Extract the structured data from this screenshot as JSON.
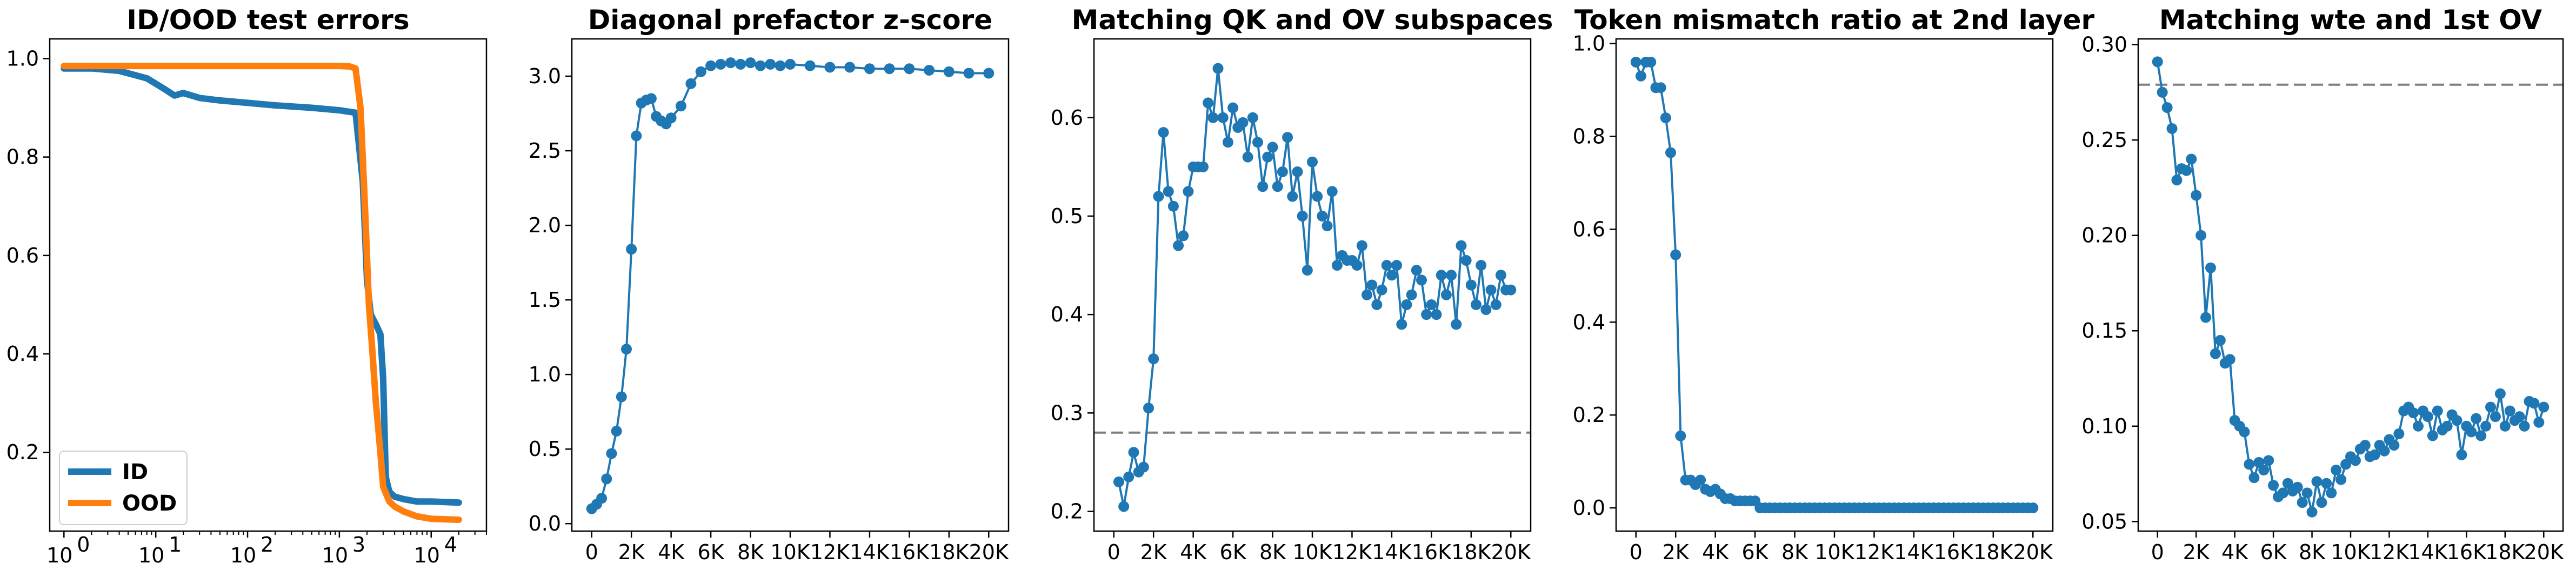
{
  "chart_data": [
    {
      "type": "line",
      "title": "ID/OOD test errors",
      "xlabel": "",
      "ylabel": "",
      "xscale": "log",
      "xlim": [
        0.7,
        40000
      ],
      "ylim": [
        0.04,
        1.04
      ],
      "x_ticks": [
        1,
        10,
        100,
        1000,
        10000
      ],
      "x_tick_labels": [
        "10",
        "10",
        "10",
        "10",
        "10"
      ],
      "x_tick_exponents": [
        "0",
        "1",
        "2",
        "3",
        "4"
      ],
      "y_ticks": [
        0.2,
        0.4,
        0.6,
        0.8,
        1.0
      ],
      "y_tick_labels": [
        "0.2",
        "0.4",
        "0.6",
        "0.8",
        "1.0"
      ],
      "legend_position": "lower-left",
      "grid": false,
      "series": [
        {
          "name": "ID",
          "color": "#1f77b4",
          "x": [
            1,
            2,
            4,
            8,
            12,
            16,
            20,
            30,
            50,
            100,
            200,
            500,
            1000,
            1500,
            1800,
            2000,
            2200,
            2500,
            2800,
            3000,
            3200,
            3500,
            4000,
            5000,
            7000,
            10000,
            20000
          ],
          "y": [
            0.98,
            0.98,
            0.975,
            0.96,
            0.94,
            0.925,
            0.93,
            0.92,
            0.915,
            0.91,
            0.905,
            0.9,
            0.895,
            0.89,
            0.75,
            0.55,
            0.48,
            0.46,
            0.44,
            0.35,
            0.15,
            0.12,
            0.11,
            0.105,
            0.1,
            0.1,
            0.098
          ]
        },
        {
          "name": "OOD",
          "color": "#ff7f0e",
          "x": [
            1,
            10,
            100,
            1000,
            1300,
            1500,
            1700,
            1900,
            2100,
            2300,
            2500,
            2800,
            3000,
            3500,
            4000,
            5000,
            7000,
            10000,
            20000
          ],
          "y": [
            0.985,
            0.985,
            0.985,
            0.985,
            0.984,
            0.98,
            0.9,
            0.7,
            0.5,
            0.4,
            0.3,
            0.2,
            0.13,
            0.1,
            0.09,
            0.08,
            0.07,
            0.065,
            0.063
          ]
        }
      ]
    },
    {
      "type": "line",
      "title": "Diagonal prefactor z-score",
      "xlabel": "",
      "ylabel": "",
      "xlim": [
        -1000,
        21000
      ],
      "ylim": [
        -0.05,
        3.25
      ],
      "x_ticks": [
        0,
        2000,
        4000,
        6000,
        8000,
        10000,
        12000,
        14000,
        16000,
        18000,
        20000
      ],
      "x_tick_labels": [
        "0",
        "2K",
        "4K",
        "6K",
        "8K",
        "10K",
        "12K",
        "14K",
        "16K",
        "18K",
        "20K"
      ],
      "y_ticks": [
        0,
        0.5,
        1.0,
        1.5,
        2.0,
        2.5,
        3.0
      ],
      "y_tick_labels": [
        "0.0",
        "0.5",
        "1.0",
        "1.5",
        "2.0",
        "2.5",
        "3.0"
      ],
      "grid": false,
      "series": [
        {
          "color": "#1f77b4",
          "markers": true,
          "x": [
            0,
            250,
            500,
            750,
            1000,
            1250,
            1500,
            1750,
            2000,
            2250,
            2500,
            2750,
            3000,
            3250,
            3500,
            3750,
            4000,
            4500,
            5000,
            5500,
            6000,
            6500,
            7000,
            7500,
            8000,
            8500,
            9000,
            9500,
            10000,
            11000,
            12000,
            13000,
            14000,
            15000,
            16000,
            17000,
            18000,
            19000,
            20000
          ],
          "y": [
            0.1,
            0.13,
            0.17,
            0.3,
            0.47,
            0.62,
            0.85,
            1.17,
            1.84,
            2.6,
            2.82,
            2.84,
            2.85,
            2.73,
            2.7,
            2.68,
            2.72,
            2.8,
            2.95,
            3.03,
            3.07,
            3.08,
            3.09,
            3.08,
            3.09,
            3.07,
            3.08,
            3.07,
            3.08,
            3.07,
            3.06,
            3.06,
            3.05,
            3.05,
            3.05,
            3.04,
            3.03,
            3.02,
            3.02
          ]
        }
      ]
    },
    {
      "type": "line",
      "title": "Matching QK and OV subspaces",
      "xlabel": "",
      "ylabel": "",
      "xlim": [
        -1000,
        21000
      ],
      "ylim": [
        0.18,
        0.68
      ],
      "x_ticks": [
        0,
        2000,
        4000,
        6000,
        8000,
        10000,
        12000,
        14000,
        16000,
        18000,
        20000
      ],
      "x_tick_labels": [
        "0",
        "2K",
        "4K",
        "6K",
        "8K",
        "10K",
        "12K",
        "14K",
        "16K",
        "18K",
        "20K"
      ],
      "y_ticks": [
        0.2,
        0.3,
        0.4,
        0.5,
        0.6
      ],
      "y_tick_labels": [
        "0.2",
        "0.3",
        "0.4",
        "0.5",
        "0.6"
      ],
      "reference_line_y": 0.28,
      "grid": false,
      "series": [
        {
          "color": "#1f77b4",
          "markers": true,
          "x": [
            250,
            500,
            750,
            1000,
            1250,
            1500,
            1750,
            2000,
            2250,
            2500,
            2750,
            3000,
            3250,
            3500,
            3750,
            4000,
            4250,
            4500,
            4750,
            5000,
            5250,
            5500,
            5750,
            6000,
            6250,
            6500,
            6750,
            7000,
            7250,
            7500,
            7750,
            8000,
            8250,
            8500,
            8750,
            9000,
            9250,
            9500,
            9750,
            10000,
            10250,
            10500,
            10750,
            11000,
            11250,
            11500,
            11750,
            12000,
            12250,
            12500,
            12750,
            13000,
            13250,
            13500,
            13750,
            14000,
            14250,
            14500,
            14750,
            15000,
            15250,
            15500,
            15750,
            16000,
            16250,
            16500,
            16750,
            17000,
            17250,
            17500,
            17750,
            18000,
            18250,
            18500,
            18750,
            19000,
            19250,
            19500,
            19750,
            20000
          ],
          "y": [
            0.23,
            0.205,
            0.235,
            0.26,
            0.24,
            0.245,
            0.305,
            0.355,
            0.52,
            0.585,
            0.525,
            0.51,
            0.47,
            0.48,
            0.525,
            0.55,
            0.55,
            0.55,
            0.615,
            0.6,
            0.65,
            0.6,
            0.575,
            0.61,
            0.59,
            0.595,
            0.56,
            0.6,
            0.575,
            0.53,
            0.56,
            0.57,
            0.53,
            0.545,
            0.58,
            0.52,
            0.545,
            0.5,
            0.445,
            0.555,
            0.52,
            0.5,
            0.49,
            0.525,
            0.45,
            0.46,
            0.455,
            0.455,
            0.45,
            0.47,
            0.42,
            0.43,
            0.41,
            0.425,
            0.45,
            0.44,
            0.45,
            0.39,
            0.41,
            0.42,
            0.445,
            0.435,
            0.4,
            0.41,
            0.4,
            0.44,
            0.42,
            0.44,
            0.39,
            0.47,
            0.455,
            0.43,
            0.41,
            0.45,
            0.405,
            0.425,
            0.41,
            0.44,
            0.425,
            0.425
          ]
        }
      ]
    },
    {
      "type": "line",
      "title": "Token mismatch ratio at 2nd layer",
      "xlabel": "",
      "ylabel": "",
      "xlim": [
        -1000,
        21000
      ],
      "ylim": [
        -0.05,
        1.01
      ],
      "x_ticks": [
        0,
        2000,
        4000,
        6000,
        8000,
        10000,
        12000,
        14000,
        16000,
        18000,
        20000
      ],
      "x_tick_labels": [
        "0",
        "2K",
        "4K",
        "6K",
        "8K",
        "10K",
        "12K",
        "14K",
        "16K",
        "18K",
        "20K"
      ],
      "y_ticks": [
        0,
        0.2,
        0.4,
        0.6,
        0.8,
        1.0
      ],
      "y_tick_labels": [
        "0.0",
        "0.2",
        "0.4",
        "0.6",
        "0.8",
        "1.0"
      ],
      "grid": false,
      "series": [
        {
          "color": "#1f77b4",
          "markers": true,
          "x": [
            0,
            250,
            500,
            750,
            1000,
            1250,
            1500,
            1750,
            2000,
            2250,
            2500,
            2750,
            3000,
            3250,
            3500,
            3750,
            4000,
            4250,
            4500,
            4750,
            5000,
            5250,
            5500,
            5750,
            6000,
            6250,
            6500,
            6750,
            7000,
            7250,
            7500,
            7750,
            8000,
            8250,
            8500,
            8750,
            9000,
            9250,
            9500,
            9750,
            10000,
            10250,
            10500,
            10750,
            11000,
            11250,
            11500,
            11750,
            12000,
            12250,
            12500,
            12750,
            13000,
            13250,
            13500,
            13750,
            14000,
            14250,
            14500,
            14750,
            15000,
            15250,
            15500,
            15750,
            16000,
            16250,
            16500,
            16750,
            17000,
            17250,
            17500,
            17750,
            18000,
            18250,
            18500,
            18750,
            19000,
            19250,
            19500,
            19750,
            20000
          ],
          "y": [
            0.96,
            0.93,
            0.96,
            0.96,
            0.905,
            0.905,
            0.84,
            0.765,
            0.545,
            0.155,
            0.06,
            0.06,
            0.05,
            0.06,
            0.04,
            0.035,
            0.04,
            0.03,
            0.02,
            0.02,
            0.015,
            0.015,
            0.015,
            0.015,
            0.015,
            0,
            0,
            0,
            0,
            0,
            0,
            0,
            0,
            0,
            0,
            0,
            0,
            0,
            0,
            0,
            0,
            0,
            0,
            0,
            0,
            0,
            0,
            0,
            0,
            0,
            0,
            0,
            0,
            0,
            0,
            0,
            0,
            0,
            0,
            0,
            0,
            0,
            0,
            0,
            0,
            0,
            0,
            0,
            0,
            0,
            0,
            0,
            0,
            0,
            0,
            0,
            0,
            0,
            0,
            0,
            0
          ]
        }
      ]
    },
    {
      "type": "line",
      "title": "Matching wte and 1st OV",
      "xlabel": "",
      "ylabel": "",
      "xlim": [
        -1000,
        21000
      ],
      "ylim": [
        0.045,
        0.303
      ],
      "x_ticks": [
        0,
        2000,
        4000,
        6000,
        8000,
        10000,
        12000,
        14000,
        16000,
        18000,
        20000
      ],
      "x_tick_labels": [
        "0",
        "2K",
        "4K",
        "6K",
        "8K",
        "10K",
        "12K",
        "14K",
        "16K",
        "18K",
        "20K"
      ],
      "y_ticks": [
        0.05,
        0.1,
        0.15,
        0.2,
        0.25,
        0.3
      ],
      "y_tick_labels": [
        "0.05",
        "0.10",
        "0.15",
        "0.20",
        "0.25",
        "0.30"
      ],
      "reference_line_y": 0.279,
      "grid": false,
      "series": [
        {
          "color": "#1f77b4",
          "markers": true,
          "x": [
            0,
            250,
            500,
            750,
            1000,
            1250,
            1500,
            1750,
            2000,
            2250,
            2500,
            2750,
            3000,
            3250,
            3500,
            3750,
            4000,
            4250,
            4500,
            4750,
            5000,
            5250,
            5500,
            5750,
            6000,
            6250,
            6500,
            6750,
            7000,
            7250,
            7500,
            7750,
            8000,
            8250,
            8500,
            8750,
            9000,
            9250,
            9500,
            9750,
            10000,
            10250,
            10500,
            10750,
            11000,
            11250,
            11500,
            11750,
            12000,
            12250,
            12500,
            12750,
            13000,
            13250,
            13500,
            13750,
            14000,
            14250,
            14500,
            14750,
            15000,
            15250,
            15500,
            15750,
            16000,
            16250,
            16500,
            16750,
            17000,
            17250,
            17500,
            17750,
            18000,
            18250,
            18500,
            18750,
            19000,
            19250,
            19500,
            19750,
            20000
          ],
          "y": [
            0.291,
            0.275,
            0.267,
            0.256,
            0.229,
            0.235,
            0.234,
            0.24,
            0.221,
            0.2,
            0.157,
            0.183,
            0.138,
            0.145,
            0.133,
            0.135,
            0.103,
            0.1,
            0.097,
            0.08,
            0.073,
            0.081,
            0.077,
            0.082,
            0.069,
            0.063,
            0.065,
            0.07,
            0.066,
            0.068,
            0.06,
            0.065,
            0.055,
            0.071,
            0.06,
            0.07,
            0.065,
            0.077,
            0.072,
            0.08,
            0.084,
            0.082,
            0.088,
            0.09,
            0.084,
            0.085,
            0.09,
            0.087,
            0.093,
            0.09,
            0.096,
            0.108,
            0.11,
            0.107,
            0.1,
            0.108,
            0.105,
            0.095,
            0.108,
            0.098,
            0.1,
            0.106,
            0.103,
            0.085,
            0.1,
            0.097,
            0.104,
            0.095,
            0.1,
            0.11,
            0.105,
            0.117,
            0.1,
            0.108,
            0.103,
            0.105,
            0.1,
            0.113,
            0.112,
            0.102,
            0.11
          ]
        }
      ]
    }
  ]
}
